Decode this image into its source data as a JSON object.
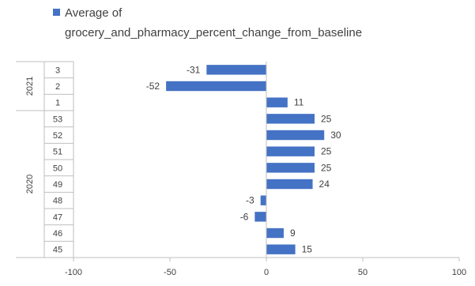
{
  "chart_data": {
    "type": "bar",
    "orientation": "horizontal",
    "title": "",
    "xlabel": "",
    "ylabel": "",
    "legend": {
      "position": "top-left",
      "lines": [
        "Average of",
        "grocery_and_pharmacy_percent_change_from_baseline"
      ]
    },
    "xlim": [
      -100,
      100
    ],
    "xticks": [
      -100,
      -50,
      0,
      50,
      100
    ],
    "grid": false,
    "colors": {
      "bar": "#4472C4",
      "axis": "#BFBFBF",
      "text": "#404040"
    },
    "groups": [
      {
        "label": "2021",
        "categories": [
          "3",
          "2",
          "1"
        ]
      },
      {
        "label": "2020",
        "categories": [
          "53",
          "52",
          "51",
          "50",
          "49",
          "48",
          "47",
          "46",
          "45"
        ]
      }
    ],
    "categories": [
      "3",
      "2",
      "1",
      "53",
      "52",
      "51",
      "50",
      "49",
      "48",
      "47",
      "46",
      "45"
    ],
    "series": [
      {
        "name": "Average of grocery_and_pharmacy_percent_change_from_baseline",
        "values": [
          -31,
          -52,
          11,
          25,
          30,
          25,
          25,
          24,
          -3,
          -6,
          9,
          15
        ]
      }
    ]
  }
}
